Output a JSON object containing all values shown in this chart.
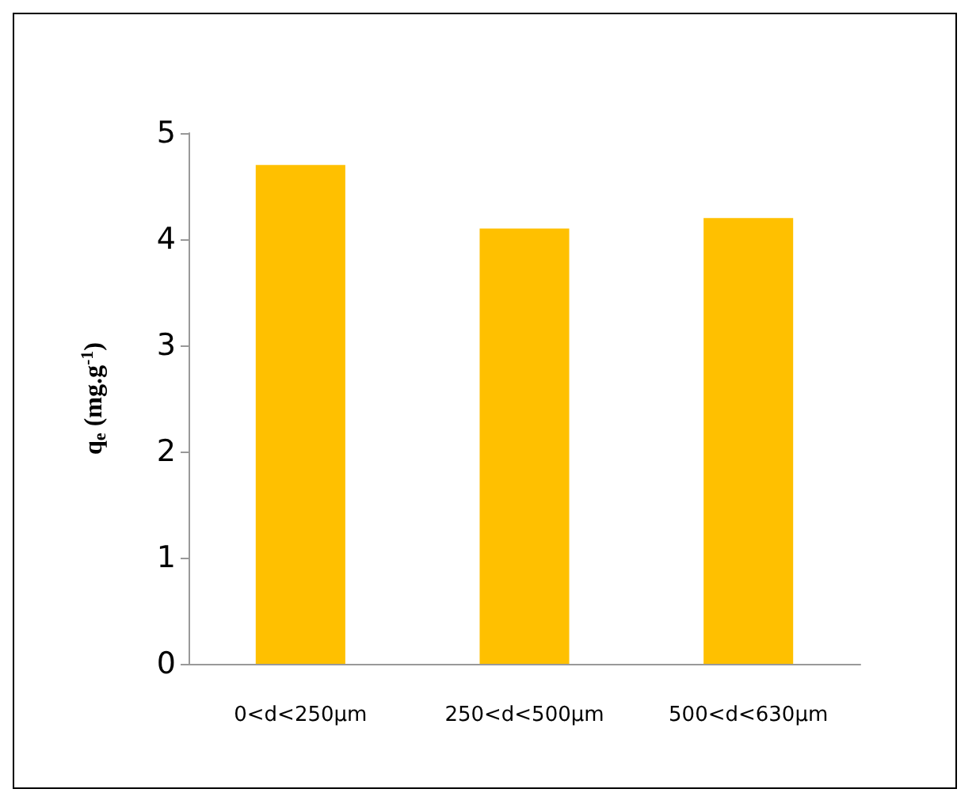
{
  "chart_data": {
    "type": "bar",
    "ylabel": "q$_{e}$ (mg.g$^{-1}$)",
    "categories": [
      "0<d<250µm",
      "250<d<500µm",
      "500<d<630µm"
    ],
    "values": [
      4.7,
      4.1,
      4.2
    ],
    "color": "#ffc000",
    "ylim": [
      0,
      5
    ],
    "yticks": [
      0,
      1,
      2,
      3,
      4,
      5
    ],
    "grid": false
  }
}
